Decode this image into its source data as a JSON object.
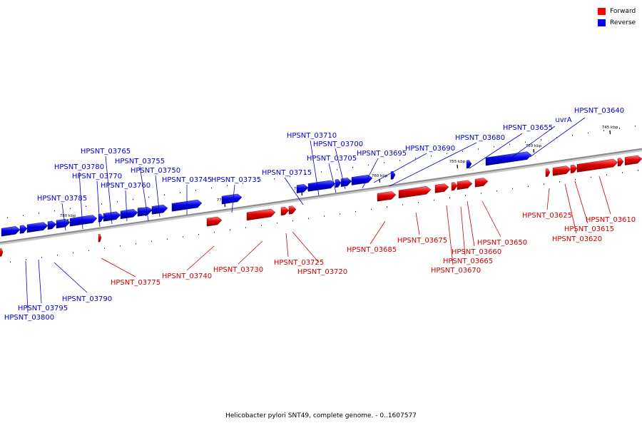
{
  "legend": [
    {
      "label": "Forward",
      "color": "#ff0000"
    },
    {
      "label": "Reverse",
      "color": "#0000ff"
    }
  ],
  "colors": {
    "forward": "#e00000",
    "reverse": "#0000e6",
    "axis": "#808080"
  },
  "caption": "Helicobacter pylori SNT49, complete genome. - 0..1607577",
  "ruler_labels": [
    "780 kbp",
    "775 kbp",
    "770 kbp",
    "765 kbp",
    "760 kbp",
    "755 kbp",
    "750 kbp",
    "745 kbp"
  ],
  "reverse_genes": [
    "HPSNT_03640",
    "uvrA",
    "HPSNT_03655",
    "HPSNT_03680",
    "HPSNT_03690",
    "HPSNT_03695",
    "HPSNT_03700",
    "HPSNT_03705",
    "HPSNT_03710",
    "HPSNT_03715",
    "HPSNT_03735",
    "HPSNT_03745",
    "HPSNT_03750",
    "HPSNT_03755",
    "HPSNT_03760",
    "HPSNT_03765",
    "HPSNT_03770",
    "HPSNT_03780",
    "HPSNT_03785",
    "HPSNT_03790",
    "HPSNT_03795",
    "HPSNT_03800"
  ],
  "forward_genes": [
    "HPSNT_03610",
    "HPSNT_03615",
    "HPSNT_03620",
    "HPSNT_03625",
    "HPSNT_03650",
    "HPSNT_03660",
    "HPSNT_03665",
    "HPSNT_03670",
    "HPSNT_03675",
    "HPSNT_03685",
    "HPSNT_03720",
    "HPSNT_03725",
    "HPSNT_03730",
    "HPSNT_03740",
    "HPSNT_03775"
  ]
}
